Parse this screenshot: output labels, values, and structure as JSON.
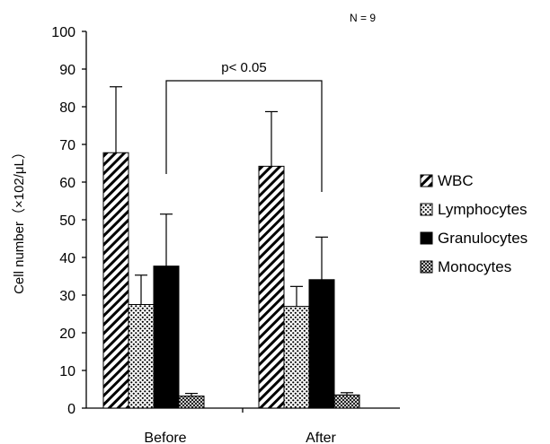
{
  "chart_data": {
    "type": "bar",
    "title": "",
    "note": "N = 9",
    "xlabel": "",
    "ylabel": "Cell number（×102/μL）",
    "ylim": [
      0,
      100
    ],
    "yticks": [
      0,
      10,
      20,
      30,
      40,
      50,
      60,
      70,
      80,
      90,
      100
    ],
    "categories": [
      "Before",
      "After"
    ],
    "series": [
      {
        "name": "WBC",
        "pattern": "diagonal-hatch",
        "values": [
          67.8,
          64.2
        ],
        "errors": [
          17.5,
          14.5
        ]
      },
      {
        "name": "Lymphocytes",
        "pattern": "dots",
        "values": [
          27.5,
          27.0
        ],
        "errors": [
          7.8,
          5.3
        ]
      },
      {
        "name": "Granulocytes",
        "pattern": "solid-black",
        "values": [
          37.7,
          34.1
        ],
        "errors": [
          13.8,
          11.3
        ]
      },
      {
        "name": "Monocytes",
        "pattern": "crosshatch",
        "values": [
          3.2,
          3.5
        ],
        "errors": [
          0.7,
          0.6
        ]
      }
    ],
    "annotation": {
      "text": "p< 0.05",
      "between": [
        "Before",
        "After"
      ]
    },
    "legend_position": "right",
    "grid": false
  }
}
